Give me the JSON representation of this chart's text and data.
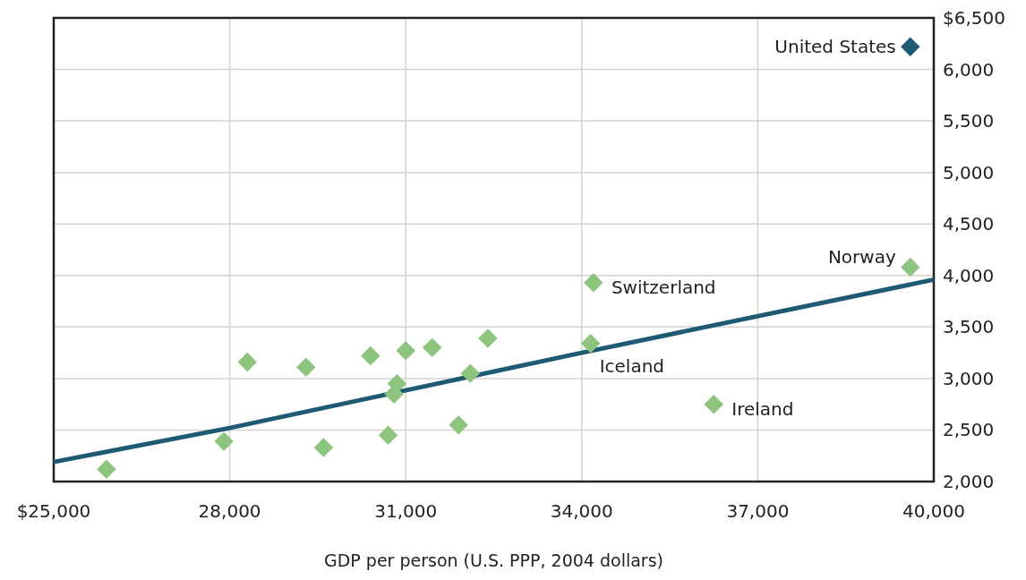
{
  "chart_data": {
    "type": "scatter",
    "xlabel": "GDP per person (U.S. PPP, 2004 dollars)",
    "marker": "diamond",
    "grid": true,
    "xlim": [
      25000,
      40000
    ],
    "xticks": [
      {
        "value": 25000,
        "label": "$25,000"
      },
      {
        "value": 28000,
        "label": "28,000"
      },
      {
        "value": 31000,
        "label": "31,000"
      },
      {
        "value": 34000,
        "label": "34,000"
      },
      {
        "value": 37000,
        "label": "37,000"
      },
      {
        "value": 40000,
        "label": "40,000"
      }
    ],
    "ylim": [
      2000,
      6500
    ],
    "yticks": [
      {
        "value": 2000,
        "label": "2,000"
      },
      {
        "value": 2500,
        "label": "2,500"
      },
      {
        "value": 3000,
        "label": "3,000"
      },
      {
        "value": 3500,
        "label": "3,500"
      },
      {
        "value": 4000,
        "label": "4,000"
      },
      {
        "value": 4500,
        "label": "4,500"
      },
      {
        "value": 5000,
        "label": "5,000"
      },
      {
        "value": 5500,
        "label": "5,500"
      },
      {
        "value": 6000,
        "label": "6,000"
      },
      {
        "value": 6500,
        "label": "$6,500"
      }
    ],
    "series": [
      {
        "type": "line",
        "marker": "none",
        "color": "#1f5a75",
        "x": [
          25000,
          28000,
          34000,
          40000
        ],
        "values": [
          2190,
          2520,
          3250,
          3960
        ]
      },
      {
        "color": "#8dc47e",
        "x": [
          25900,
          27900,
          28300,
          29300,
          29600,
          30400,
          30700,
          30800,
          30850,
          31000,
          31450,
          31900,
          32100,
          32400,
          34150,
          34200,
          36250,
          39600
        ],
        "values": [
          2120,
          2390,
          3160,
          3110,
          2330,
          3220,
          2450,
          2850,
          2950,
          3270,
          3300,
          2550,
          3050,
          3390,
          3340,
          3930,
          2750,
          4080
        ]
      },
      {
        "color": "#1f5a75",
        "x": [
          39600
        ],
        "values": [
          6220
        ]
      }
    ],
    "annotations": [
      {
        "text": "United States",
        "x": 39600,
        "y": 6220
      },
      {
        "text": "Norway",
        "x": 39600,
        "y": 4080
      },
      {
        "text": "Switzerland",
        "x": 34200,
        "y": 3930
      },
      {
        "text": "Iceland",
        "x": 34150,
        "y": 3340
      },
      {
        "text": "Ireland",
        "x": 36250,
        "y": 2750
      }
    ]
  }
}
